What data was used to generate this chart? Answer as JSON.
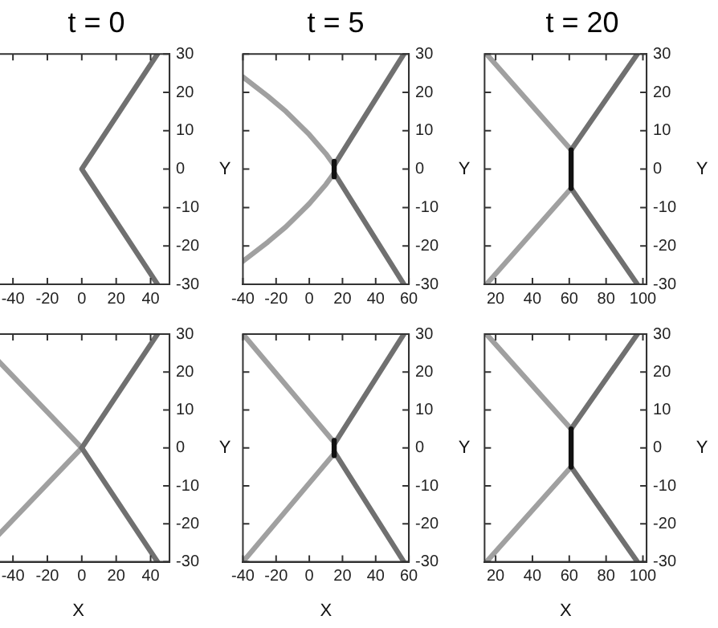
{
  "chart_data": [
    {
      "type": "line",
      "title": "t = 0",
      "ylabel": "Y",
      "xlim": [
        -55,
        51
      ],
      "xticks": [
        -40,
        -20,
        0,
        20,
        40
      ],
      "ylim": [
        -30,
        30
      ],
      "yticks": [
        -30,
        -20,
        -10,
        0,
        10,
        20,
        30
      ],
      "grid": false,
      "legend": false,
      "marker": "none",
      "series": [
        {
          "color": "#707070",
          "x": [
            44,
            0,
            44
          ],
          "values": [
            30,
            0,
            -30
          ]
        }
      ]
    },
    {
      "type": "line",
      "title": "t = 5",
      "ylabel": "Y",
      "xlim": [
        -40,
        60
      ],
      "xticks": [
        -40,
        -20,
        0,
        20,
        40,
        60
      ],
      "ylim": [
        -30,
        30
      ],
      "yticks": [
        -30,
        -20,
        -10,
        0,
        10,
        20,
        30
      ],
      "grid": false,
      "legend": false,
      "marker": "none",
      "series": [
        {
          "color": "#a0a0a0",
          "x": [
            -40,
            -25,
            -14,
            0,
            10,
            15
          ],
          "values": [
            24,
            19,
            15,
            9,
            4,
            1
          ]
        },
        {
          "color": "#a0a0a0",
          "x": [
            -40,
            -25,
            -14,
            0,
            10,
            15
          ],
          "values": [
            -24,
            -19,
            -15,
            -9,
            -4,
            -1
          ]
        },
        {
          "color": "#707070",
          "x": [
            15,
            57
          ],
          "values": [
            1,
            30
          ]
        },
        {
          "color": "#707070",
          "x": [
            15,
            57
          ],
          "values": [
            -1,
            -30
          ]
        },
        {
          "color": "#111111",
          "x": [
            15,
            15
          ],
          "values": [
            -2,
            2
          ]
        }
      ]
    },
    {
      "type": "line",
      "title": "t = 20",
      "ylabel": "Y",
      "xlim": [
        14,
        102
      ],
      "xticks": [
        20,
        40,
        60,
        80,
        100
      ],
      "ylim": [
        -30,
        30
      ],
      "yticks": [
        -30,
        -20,
        -10,
        0,
        10,
        20,
        30
      ],
      "grid": false,
      "legend": false,
      "marker": "none",
      "series": [
        {
          "color": "#a0a0a0",
          "x": [
            15,
            61
          ],
          "values": [
            30,
            5
          ]
        },
        {
          "color": "#a0a0a0",
          "x": [
            15,
            61
          ],
          "values": [
            -30,
            -5
          ]
        },
        {
          "color": "#707070",
          "x": [
            61,
            97
          ],
          "values": [
            5,
            30
          ]
        },
        {
          "color": "#707070",
          "x": [
            61,
            97
          ],
          "values": [
            -5,
            -30
          ]
        },
        {
          "color": "#111111",
          "x": [
            61,
            61
          ],
          "values": [
            -5,
            5
          ]
        }
      ]
    },
    {
      "type": "line",
      "xlabel": "X",
      "ylabel": "Y",
      "xlim": [
        -55,
        51
      ],
      "xticks": [
        -40,
        -20,
        0,
        20,
        40
      ],
      "ylim": [
        -30,
        30
      ],
      "yticks": [
        -30,
        -20,
        -10,
        0,
        10,
        20,
        30
      ],
      "grid": false,
      "legend": false,
      "marker": "none",
      "series": [
        {
          "color": "#a0a0a0",
          "x": [
            -55,
            0
          ],
          "values": [
            26,
            0
          ]
        },
        {
          "color": "#a0a0a0",
          "x": [
            -55,
            0
          ],
          "values": [
            -26,
            0
          ]
        },
        {
          "color": "#707070",
          "x": [
            0,
            44
          ],
          "values": [
            0,
            30
          ]
        },
        {
          "color": "#707070",
          "x": [
            0,
            44
          ],
          "values": [
            0,
            -30
          ]
        }
      ]
    },
    {
      "type": "line",
      "xlabel": "X",
      "ylabel": "Y",
      "xlim": [
        -40,
        60
      ],
      "xticks": [
        -40,
        -20,
        0,
        20,
        40,
        60
      ],
      "ylim": [
        -30,
        30
      ],
      "yticks": [
        -30,
        -20,
        -10,
        0,
        10,
        20,
        30
      ],
      "grid": false,
      "legend": false,
      "marker": "none",
      "series": [
        {
          "color": "#a0a0a0",
          "x": [
            -40,
            14
          ],
          "values": [
            30,
            2
          ]
        },
        {
          "color": "#a0a0a0",
          "x": [
            -40,
            14
          ],
          "values": [
            -30,
            -2
          ]
        },
        {
          "color": "#707070",
          "x": [
            15,
            57
          ],
          "values": [
            1,
            30
          ]
        },
        {
          "color": "#707070",
          "x": [
            15,
            57
          ],
          "values": [
            -1,
            -30
          ]
        },
        {
          "color": "#111111",
          "x": [
            15,
            15
          ],
          "values": [
            -2,
            2
          ]
        }
      ]
    },
    {
      "type": "line",
      "xlabel": "X",
      "ylabel": "Y",
      "xlim": [
        14,
        102
      ],
      "xticks": [
        20,
        40,
        60,
        80,
        100
      ],
      "ylim": [
        -30,
        30
      ],
      "yticks": [
        -30,
        -20,
        -10,
        0,
        10,
        20,
        30
      ],
      "grid": false,
      "legend": false,
      "marker": "none",
      "series": [
        {
          "color": "#a0a0a0",
          "x": [
            15,
            61
          ],
          "values": [
            30,
            5
          ]
        },
        {
          "color": "#a0a0a0",
          "x": [
            15,
            61
          ],
          "values": [
            -30,
            -5
          ]
        },
        {
          "color": "#707070",
          "x": [
            61,
            97
          ],
          "values": [
            5,
            30
          ]
        },
        {
          "color": "#707070",
          "x": [
            61,
            97
          ],
          "values": [
            -5,
            -30
          ]
        },
        {
          "color": "#111111",
          "x": [
            61,
            61
          ],
          "values": [
            -5,
            5
          ]
        }
      ]
    }
  ]
}
